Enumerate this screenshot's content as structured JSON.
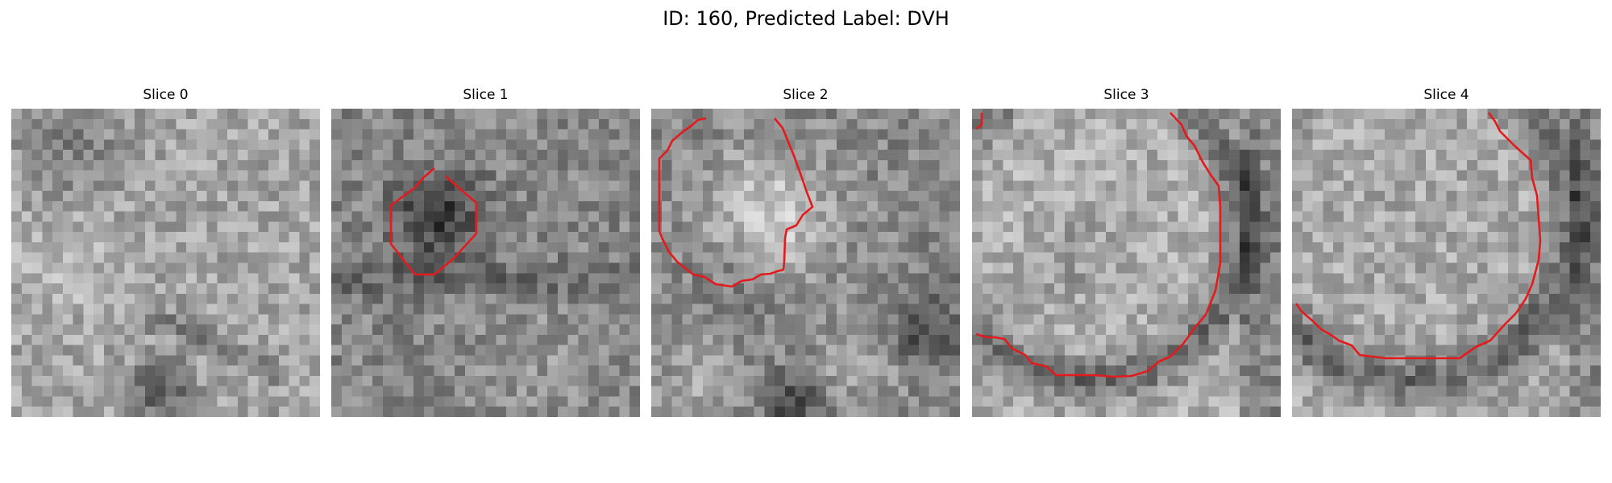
{
  "figure": {
    "title": "ID: 160, Predicted Label: DVH"
  },
  "panels": [
    {
      "title": "Slice 0",
      "has_contour": false
    },
    {
      "title": "Slice 1",
      "has_contour": true
    },
    {
      "title": "Slice 2",
      "has_contour": true
    },
    {
      "title": "Slice 3",
      "has_contour": true
    },
    {
      "title": "Slice 4",
      "has_contour": true
    }
  ],
  "colors": {
    "contour": "#e41a1c",
    "background": "#ffffff",
    "colormap": "grayscale"
  }
}
